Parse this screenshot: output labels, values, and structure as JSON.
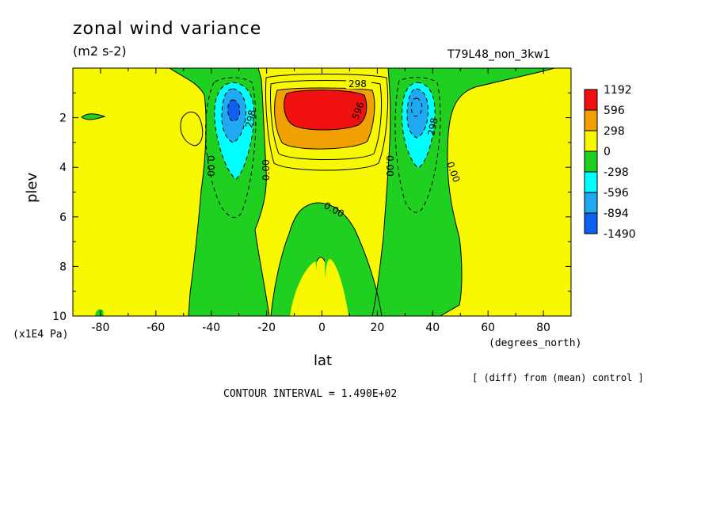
{
  "chart_data": {
    "type": "contour",
    "title": "zonal wind variance",
    "units": "(m2 s-2)",
    "run_label": "T79L48_non_3kw1",
    "xlabel": "lat",
    "ylabel": "plev",
    "x_units": "(degrees_north)",
    "y_units": "(x1E4 Pa)",
    "diff_note": "[ (diff) from (mean) control ]",
    "contour_interval_text": "CONTOUR INTERVAL = 1.490E+02",
    "xlim": [
      -90,
      90
    ],
    "ylim": [
      10,
      0
    ],
    "x_ticks": [
      -80,
      -60,
      -40,
      -20,
      0,
      20,
      40,
      60,
      80
    ],
    "y_ticks": [
      2,
      4,
      6,
      8,
      10
    ],
    "contour_labels": [
      "298",
      "596",
      "298",
      "298",
      "0.00",
      "0.00",
      "0.00",
      "0.00",
      "0.00"
    ],
    "legend": [
      {
        "label": "1192",
        "color": "#f01010"
      },
      {
        "label": "596",
        "color": "#f0a000"
      },
      {
        "label": "298",
        "color": "#f8f800"
      },
      {
        "label": "0",
        "color": "#20d020"
      },
      {
        "label": "-298",
        "color": "#00ffff"
      },
      {
        "label": "-596",
        "color": "#20a8f0"
      },
      {
        "label": "-894",
        "color": "#1060f0"
      },
      {
        "label": "-1490",
        "color": ""
      }
    ],
    "features": [
      {
        "name": "equatorial upper maximum",
        "lat": 0,
        "plev": 1.5,
        "value_range": [
          596,
          1192
        ]
      },
      {
        "name": "south subtropical minimum",
        "lat": -31,
        "plev": 1.8,
        "value_range": [
          -894,
          -596
        ]
      },
      {
        "name": "north subtropical minimum",
        "lat": 34,
        "plev": 1.8,
        "value_range": [
          -894,
          -596
        ]
      }
    ],
    "palette": {
      "positive_fill": "#f8f800",
      "negative_fill": "#20d020",
      "cyan_fill": "#00ffff",
      "mid_blue_fill": "#20a8f0",
      "dark_blue_fill": "#1060f0",
      "orange_fill": "#f0a000",
      "red_fill": "#f01010"
    }
  }
}
